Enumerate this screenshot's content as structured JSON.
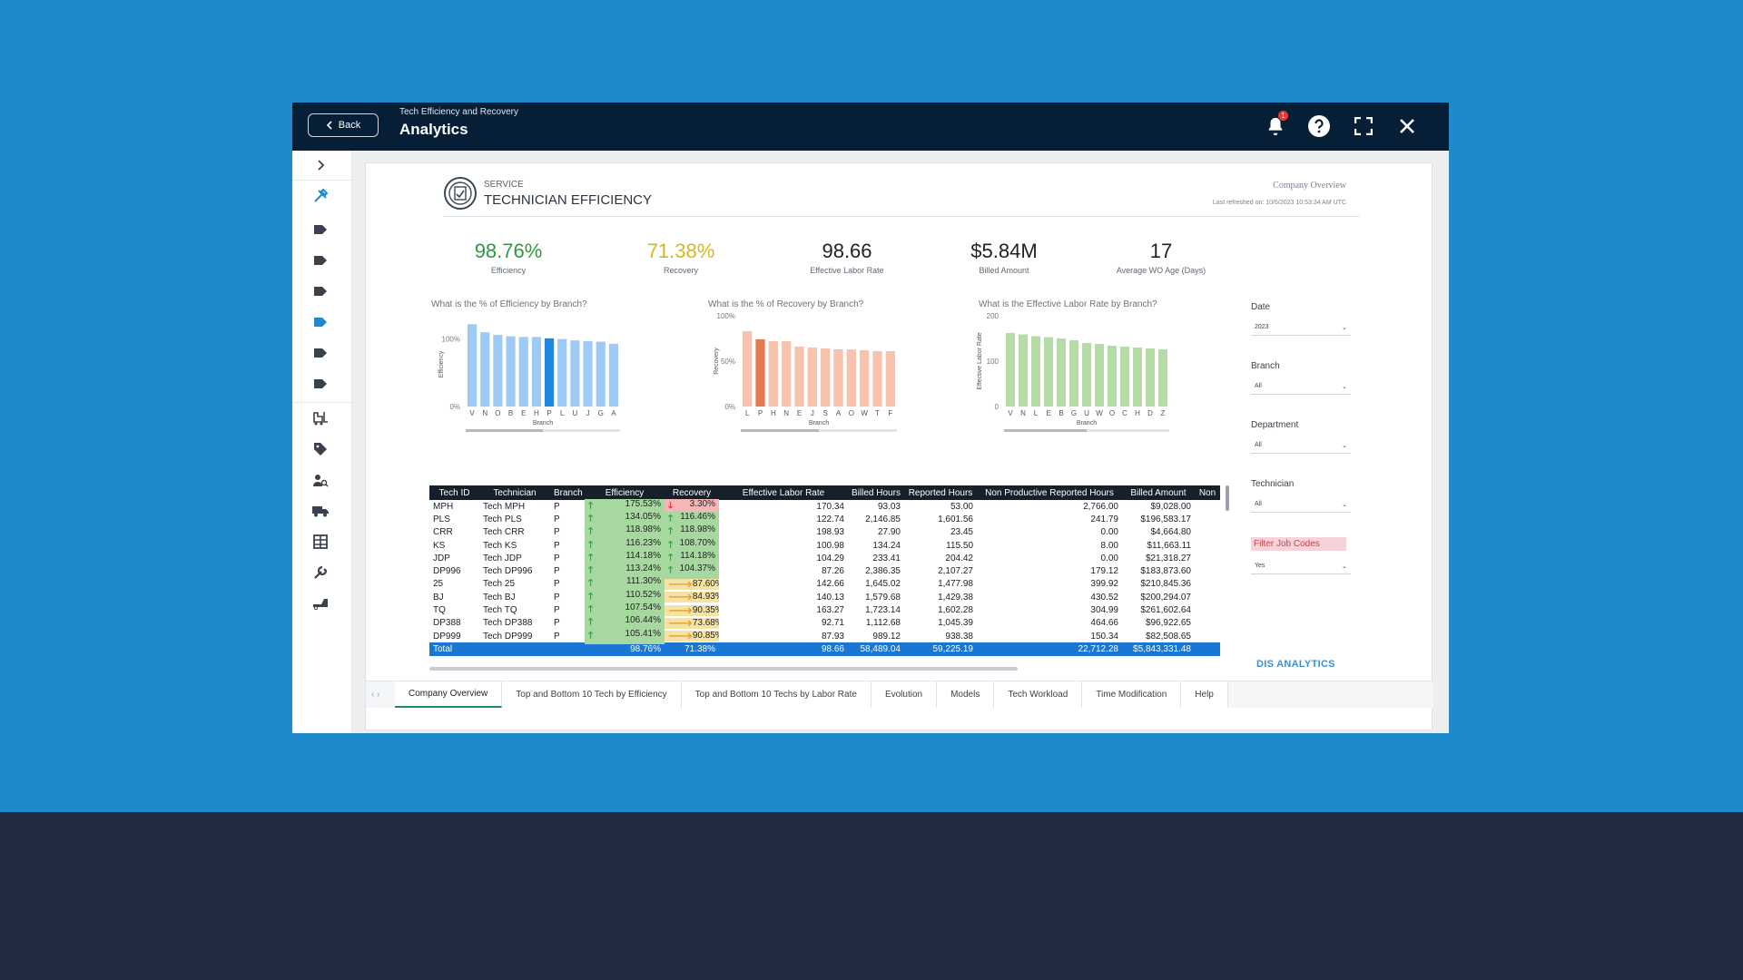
{
  "topbar": {
    "back_label": "Back",
    "subtitle": "Tech Efficiency and Recovery",
    "title": "Analytics",
    "notification_count": "1"
  },
  "sidebar": {
    "icons": [
      "chevron-right-icon",
      "tools-icon",
      "tag-icon",
      "tag-icon",
      "tag-icon",
      "tag-active-icon",
      "tag-icon",
      "tag-icon",
      "forklift-icon",
      "price-tag-icon",
      "user-search-icon",
      "truck-icon",
      "grid-icon",
      "wrench-icon",
      "tow-icon"
    ],
    "accent": "#1e8acb"
  },
  "report": {
    "header": {
      "small": "SERVICE",
      "big": "TECHNICIAN EFFICIENCY",
      "right_title": "Company Overview",
      "refreshed": "Last refreshed on: 10/6/2023 10:53:34 AM UTC"
    },
    "kpis": [
      {
        "value": "98.76%",
        "label": "Efficiency",
        "color": "#2e9a3e"
      },
      {
        "value": "71.38%",
        "label": "Recovery",
        "color": "#d6b81e"
      },
      {
        "value": "98.66",
        "label": "Effective Labor Rate",
        "color": "#222222"
      },
      {
        "value": "$5.84M",
        "label": "Billed Amount",
        "color": "#222222"
      },
      {
        "value": "17",
        "label": "Average WO Age (Days)",
        "color": "#222222"
      }
    ],
    "slicers": [
      {
        "label": "Date",
        "value": "2023"
      },
      {
        "label": "Branch",
        "value": "All"
      },
      {
        "label": "Department",
        "value": "All"
      },
      {
        "label": "Technician",
        "value": "All"
      },
      {
        "label": "Filter Job Codes",
        "value": "Yes"
      }
    ],
    "brand": "DIS ANALYTICS",
    "table": {
      "headers": [
        "Tech ID",
        "Technician",
        "Branch",
        "Efficiency",
        "Recovery",
        "Effective Labor Rate",
        "Billed Hours",
        "Reported Hours",
        "Non Productive Reported Hours",
        "Billed Amount",
        "Non"
      ],
      "rows": [
        {
          "id": "MPH",
          "tech": "Tech MPH",
          "branch": "P",
          "eff": "175.53%",
          "rec": "3.30%",
          "rec_trend": "down",
          "elr": "170.34",
          "bh": "93.03",
          "rh": "53.00",
          "nprh": "2,766.00",
          "ba": "$9,028.00"
        },
        {
          "id": "PLS",
          "tech": "Tech PLS",
          "branch": "P",
          "eff": "134.05%",
          "rec": "116.46%",
          "rec_trend": "up",
          "elr": "122.74",
          "bh": "2,146.85",
          "rh": "1,601.56",
          "nprh": "241.79",
          "ba": "$196,583.17"
        },
        {
          "id": "CRR",
          "tech": "Tech CRR",
          "branch": "P",
          "eff": "118.98%",
          "rec": "118.98%",
          "rec_trend": "up",
          "elr": "198.93",
          "bh": "27.90",
          "rh": "23.45",
          "nprh": "0.00",
          "ba": "$4,664.80"
        },
        {
          "id": "KS",
          "tech": "Tech KS",
          "branch": "P",
          "eff": "116.23%",
          "rec": "108.70%",
          "rec_trend": "up",
          "elr": "100.98",
          "bh": "134.24",
          "rh": "115.50",
          "nprh": "8.00",
          "ba": "$11,663.11"
        },
        {
          "id": "JDP",
          "tech": "Tech JDP",
          "branch": "P",
          "eff": "114.18%",
          "rec": "114.18%",
          "rec_trend": "up",
          "elr": "104.29",
          "bh": "233.41",
          "rh": "204.42",
          "nprh": "0.00",
          "ba": "$21,318.27"
        },
        {
          "id": "DP996",
          "tech": "Tech DP996",
          "branch": "P",
          "eff": "113.24%",
          "rec": "104.37%",
          "rec_trend": "up",
          "elr": "87.26",
          "bh": "2,386.35",
          "rh": "2,107.27",
          "nprh": "179.12",
          "ba": "$183,873.60"
        },
        {
          "id": "25",
          "tech": "Tech 25",
          "branch": "P",
          "eff": "111.30%",
          "rec": "87.60%",
          "rec_trend": "mid",
          "elr": "142.66",
          "bh": "1,645.02",
          "rh": "1,477.98",
          "nprh": "399.92",
          "ba": "$210,845.36"
        },
        {
          "id": "BJ",
          "tech": "Tech BJ",
          "branch": "P",
          "eff": "110.52%",
          "rec": "84.93%",
          "rec_trend": "mid",
          "elr": "140.13",
          "bh": "1,579.68",
          "rh": "1,429.38",
          "nprh": "430.52",
          "ba": "$200,294.07"
        },
        {
          "id": "TQ",
          "tech": "Tech TQ",
          "branch": "P",
          "eff": "107.54%",
          "rec": "90.35%",
          "rec_trend": "mid",
          "elr": "163.27",
          "bh": "1,723.14",
          "rh": "1,602.28",
          "nprh": "304.99",
          "ba": "$261,602.64"
        },
        {
          "id": "DP388",
          "tech": "Tech DP388",
          "branch": "P",
          "eff": "106.44%",
          "rec": "73.68%",
          "rec_trend": "mid",
          "elr": "92.71",
          "bh": "1,112.68",
          "rh": "1,045.39",
          "nprh": "464.66",
          "ba": "$96,922.65"
        },
        {
          "id": "DP999",
          "tech": "Tech DP999",
          "branch": "P",
          "eff": "105.41%",
          "rec": "90.85%",
          "rec_trend": "mid",
          "elr": "87.93",
          "bh": "989.12",
          "rh": "938.38",
          "nprh": "150.34",
          "ba": "$82,508.65"
        }
      ],
      "total": {
        "id": "Total",
        "eff": "98.76%",
        "rec": "71.38%",
        "elr": "98.66",
        "bh": "58,489.04",
        "rh": "59,225.19",
        "nprh": "22,712.28",
        "ba": "$5,843,331.48"
      }
    },
    "tabs": [
      "Company Overview",
      "Top and Bottom 10 Tech by Efficiency",
      "Top and Bottom 10 Techs by Labor Rate",
      "Evolution",
      "Models",
      "Tech Workload",
      "Time Modification",
      "Help"
    ],
    "active_tab": 0
  },
  "chart_data": [
    {
      "type": "bar",
      "title": "What is the % of Efficiency by Branch?",
      "xlabel": "Branch",
      "ylabel": "Efficiency",
      "yticks": [
        "0%",
        "100%"
      ],
      "ylim": [
        0,
        125
      ],
      "categories": [
        "V",
        "N",
        "O",
        "B",
        "E",
        "H",
        "P",
        "L",
        "U",
        "J",
        "G",
        "A"
      ],
      "values": [
        122,
        110,
        106,
        104,
        103,
        103,
        101,
        100,
        98,
        97,
        96,
        93
      ],
      "highlight": "P",
      "color": "#9ecbf5",
      "highlight_color": "#1e88e5"
    },
    {
      "type": "bar",
      "title": "What is the % of Recovery by Branch?",
      "xlabel": "Branch",
      "ylabel": "Recovery",
      "yticks": [
        "0%",
        "50%",
        "100%"
      ],
      "ylim": [
        0,
        100
      ],
      "categories": [
        "L",
        "P",
        "H",
        "N",
        "E",
        "J",
        "S",
        "A",
        "O",
        "W",
        "T",
        "F"
      ],
      "values": [
        83,
        74,
        72,
        72,
        66,
        65,
        64,
        63,
        63,
        62,
        61,
        61
      ],
      "highlight": "P",
      "color": "#f8c2ad",
      "highlight_color": "#e57a52"
    },
    {
      "type": "bar",
      "title": "What is the Effective Labor Rate by Branch?",
      "xlabel": "Branch",
      "ylabel": "Effective Labor Rate",
      "yticks": [
        "0",
        "100",
        "200"
      ],
      "ylim": [
        0,
        200
      ],
      "categories": [
        "V",
        "N",
        "L",
        "E",
        "B",
        "G",
        "U",
        "W",
        "O",
        "C",
        "H",
        "D",
        "Z"
      ],
      "values": [
        162,
        159,
        155,
        153,
        150,
        146,
        140,
        138,
        134,
        132,
        130,
        128,
        126
      ],
      "color": "#b5dca6"
    }
  ]
}
